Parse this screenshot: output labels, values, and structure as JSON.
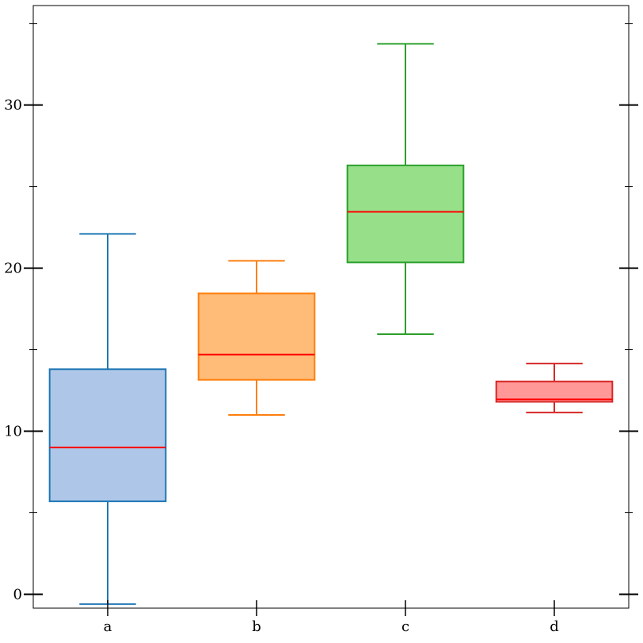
{
  "chart_data": {
    "type": "box",
    "title": "",
    "xlabel": "",
    "ylabel": "",
    "categories": [
      "a",
      "b",
      "c",
      "d"
    ],
    "ylim": [
      -0.85,
      36.1
    ],
    "yticks_major": [
      0,
      10,
      20,
      30
    ],
    "yticks_major_labels": [
      "0",
      "10",
      "20",
      "30"
    ],
    "yticks_minor": [
      5,
      15,
      25,
      35
    ],
    "grid": false,
    "boxes": [
      {
        "category": "a",
        "whisker_low": -0.6,
        "q1": 5.7,
        "median": 9.0,
        "q3": 13.8,
        "whisker_high": 22.1,
        "edge_color": "#1f77b4",
        "fill_color": "#aec7e8"
      },
      {
        "category": "b",
        "whisker_low": 11.0,
        "q1": 13.15,
        "median": 14.7,
        "q3": 18.45,
        "whisker_high": 20.45,
        "edge_color": "#ff7f0e",
        "fill_color": "#ffbb78"
      },
      {
        "category": "c",
        "whisker_low": 15.95,
        "q1": 20.35,
        "median": 23.45,
        "q3": 26.3,
        "whisker_high": 33.75,
        "edge_color": "#2ca02c",
        "fill_color": "#98df8a"
      },
      {
        "category": "d",
        "whisker_low": 11.15,
        "q1": 11.8,
        "median": 11.95,
        "q3": 13.05,
        "whisker_high": 14.15,
        "edge_color": "#d62728",
        "fill_color": "#ff9896"
      }
    ],
    "median_color": "#ff0000"
  }
}
